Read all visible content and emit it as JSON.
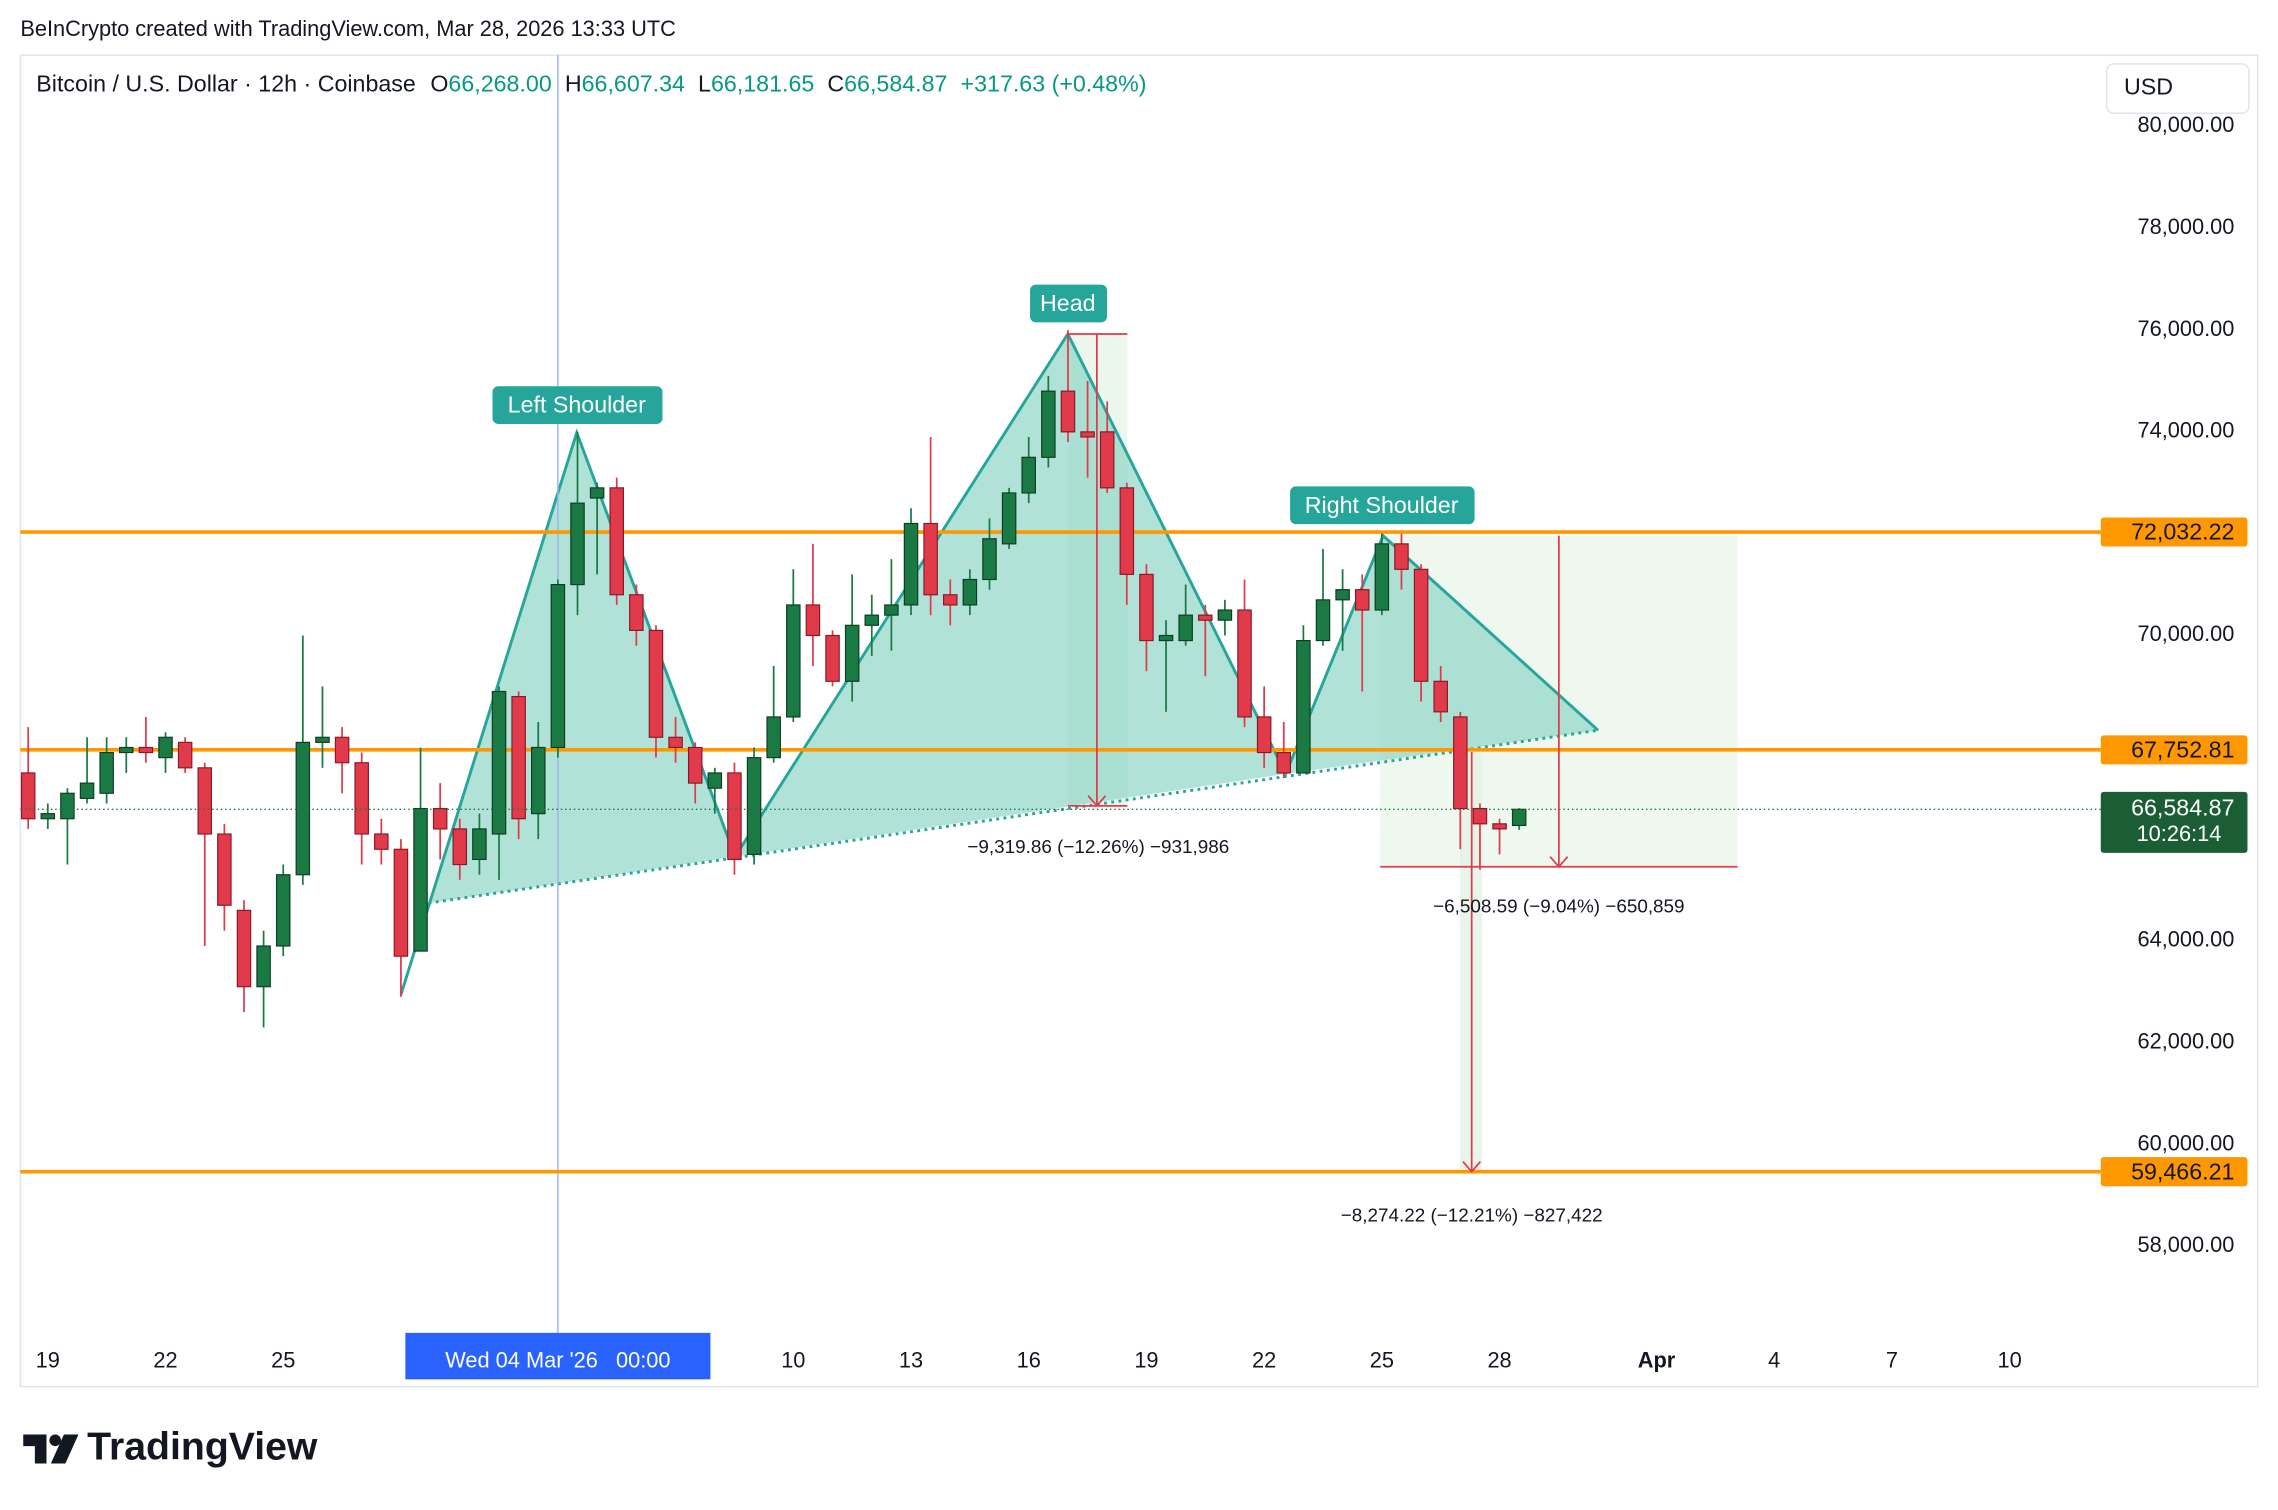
{
  "header": {
    "attribution": "BeInCrypto created with TradingView.com, Mar 28, 2026 13:33 UTC",
    "currency": "USD",
    "logo": "TradingView"
  },
  "chart_data": {
    "type": "candlestick",
    "title": "Bitcoin / U.S. Dollar · 12h · Coinbase",
    "ohlc_legend": [
      {
        "key": "O",
        "value": "66,268.00"
      },
      {
        "key": "H",
        "value": "66,607.34"
      },
      {
        "key": "L",
        "value": "66,181.65"
      },
      {
        "key": "C",
        "value": "66,584.87"
      }
    ],
    "change": "+317.63 (+0.48%)",
    "open": [
      67300,
      66400,
      66400,
      66800,
      66900,
      67700,
      67800,
      67600,
      67900,
      67400,
      66100,
      64600,
      63100,
      63900,
      65300,
      67900,
      68000,
      67500,
      66100,
      65800,
      63800,
      66600,
      66200,
      65600,
      66100,
      68800,
      66500,
      67800,
      71000,
      72700,
      72900,
      70800,
      70100,
      68000,
      67800,
      67000,
      67300,
      65700,
      67600,
      68400,
      70600,
      70000,
      69100,
      70200,
      70400,
      70600,
      72200,
      70800,
      70600,
      71100,
      71800,
      72800,
      73500,
      74800,
      74000,
      74000,
      72900,
      71200,
      69900,
      69900,
      70400,
      70300,
      70500,
      68400,
      67700,
      67300,
      69900,
      70700,
      70900,
      70500,
      71800,
      71300,
      69100,
      68400,
      66600,
      66300,
      66268
    ],
    "high": [
      68200,
      66700,
      67000,
      68000,
      68000,
      68000,
      68400,
      68100,
      68000,
      67500,
      66300,
      64800,
      64200,
      65500,
      70000,
      69000,
      68200,
      67700,
      66400,
      66000,
      67800,
      67100,
      66400,
      66500,
      69000,
      68900,
      68300,
      71100,
      74000,
      73000,
      73100,
      71000,
      70200,
      68400,
      67900,
      67400,
      67500,
      67800,
      69400,
      71300,
      71800,
      70100,
      71200,
      70800,
      71500,
      72500,
      73900,
      71100,
      71300,
      72300,
      72900,
      73900,
      75100,
      76000,
      75000,
      74600,
      73000,
      71400,
      70300,
      71000,
      70600,
      70700,
      71100,
      69000,
      68300,
      70200,
      71700,
      71300,
      71200,
      72000,
      72000,
      71400,
      69400,
      68500,
      66700,
      66400,
      66607.34
    ],
    "low": [
      66200,
      66200,
      65500,
      66700,
      66700,
      67300,
      67500,
      67300,
      67300,
      63900,
      64200,
      62600,
      62300,
      63700,
      65100,
      67400,
      66900,
      65500,
      65500,
      62900,
      63800,
      65600,
      65200,
      65300,
      65200,
      66000,
      66000,
      67600,
      70400,
      71200,
      70600,
      69800,
      67600,
      67500,
      66700,
      66500,
      65300,
      65500,
      67500,
      68300,
      69400,
      69000,
      68700,
      69600,
      69700,
      70400,
      70400,
      70200,
      70400,
      70900,
      71700,
      72600,
      73300,
      73800,
      73100,
      72800,
      70600,
      69300,
      68500,
      69800,
      69200,
      70000,
      68200,
      67400,
      67200,
      67300,
      69800,
      69700,
      68900,
      70400,
      70900,
      68700,
      68300,
      65800,
      65400,
      65700,
      66181.65
    ],
    "close": [
      66400,
      66500,
      66900,
      67100,
      67700,
      67800,
      67700,
      68000,
      67400,
      66100,
      64700,
      63100,
      63900,
      65300,
      67900,
      68000,
      67500,
      66100,
      65800,
      63700,
      66600,
      66200,
      65500,
      66200,
      68900,
      66400,
      67800,
      71000,
      72600,
      72900,
      70800,
      70100,
      68000,
      67800,
      67100,
      67300,
      65600,
      67600,
      68400,
      70600,
      70000,
      69100,
      70200,
      70400,
      70600,
      72200,
      70800,
      70600,
      71100,
      71900,
      72800,
      73500,
      74800,
      74000,
      73900,
      72900,
      71200,
      69900,
      70000,
      70400,
      70300,
      70500,
      68400,
      67700,
      67300,
      69900,
      70700,
      70900,
      70500,
      71800,
      71300,
      69100,
      68500,
      66600,
      66300,
      66200,
      66584.87
    ],
    "up_color": "#1b7a44",
    "down_color": "#e03a4b",
    "xlim": [
      -0.7,
      52.1
    ],
    "xticks": [
      {
        "value": 0,
        "label": "19"
      },
      {
        "value": 3,
        "label": "22"
      },
      {
        "value": 6,
        "label": "25"
      },
      {
        "value": 19,
        "label": "10"
      },
      {
        "value": 22,
        "label": "13"
      },
      {
        "value": 25,
        "label": "16"
      },
      {
        "value": 28,
        "label": "19"
      },
      {
        "value": 31,
        "label": "22"
      },
      {
        "value": 34,
        "label": "25"
      },
      {
        "value": 37,
        "label": "28"
      },
      {
        "value": 41,
        "label": "Apr"
      },
      {
        "value": 44,
        "label": "4"
      },
      {
        "value": 47,
        "label": "7"
      },
      {
        "value": 50,
        "label": "10"
      }
    ],
    "crosshair": {
      "value": 13,
      "label": "Wed 04 Mar '26   00:00"
    },
    "ylim": [
      56300,
      81400
    ],
    "yticks": [
      {
        "value": 58000,
        "label": "58,000.00"
      },
      {
        "value": 60000,
        "label": "60,000.00"
      },
      {
        "value": 62000,
        "label": "62,000.00"
      },
      {
        "value": 64000,
        "label": "64,000.00"
      },
      {
        "value": 70000,
        "label": "70,000.00"
      },
      {
        "value": 74000,
        "label": "74,000.00"
      },
      {
        "value": 76000,
        "label": "76,000.00"
      },
      {
        "value": 78000,
        "label": "78,000.00"
      },
      {
        "value": 80000,
        "label": "80,000.00"
      }
    ],
    "price_lines": [
      {
        "value": 72032.22,
        "label": "72,032.22"
      },
      {
        "value": 67752.81,
        "label": "67,752.81"
      },
      {
        "value": 59466.21,
        "label": "59,466.21"
      }
    ],
    "last_price": {
      "value": 66584.87,
      "label": "66,584.87",
      "countdown": "10:26:14"
    },
    "annotations": [
      "Left Shoulder",
      "Head",
      "Right Shoulder"
    ],
    "measurements": [
      "−9,319.86 (−12.26%) −931,986",
      "−6,508.59 (−9.04%) −650,859",
      "−8,274.22 (−12.21%) −827,422"
    ]
  }
}
